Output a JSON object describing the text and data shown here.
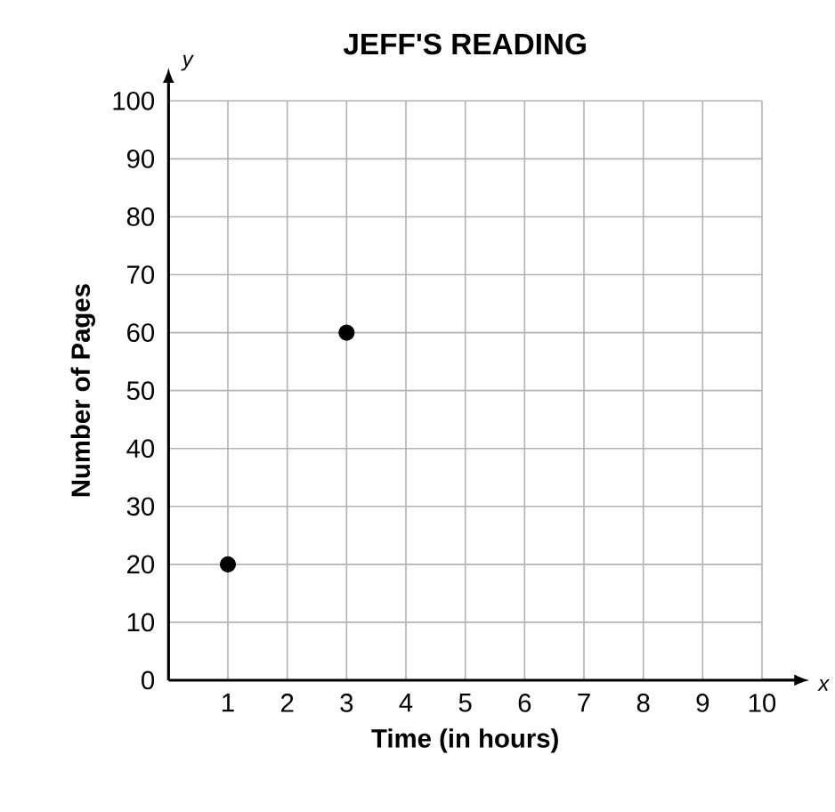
{
  "chart_data": {
    "type": "scatter",
    "title": "JEFF'S READING",
    "xlabel": "Time (in hours)",
    "ylabel": "Number of Pages",
    "x": [
      1,
      3
    ],
    "values": [
      20,
      60
    ],
    "color": "#000000",
    "xlim": [
      0,
      10
    ],
    "ylim": [
      0,
      100
    ],
    "xticks": [
      1,
      2,
      3,
      4,
      5,
      6,
      7,
      8,
      9,
      10
    ],
    "yticks": [
      0,
      10,
      20,
      30,
      40,
      50,
      60,
      70,
      80,
      90,
      100
    ],
    "grid": true,
    "annotations": [
      "y",
      "x"
    ]
  }
}
